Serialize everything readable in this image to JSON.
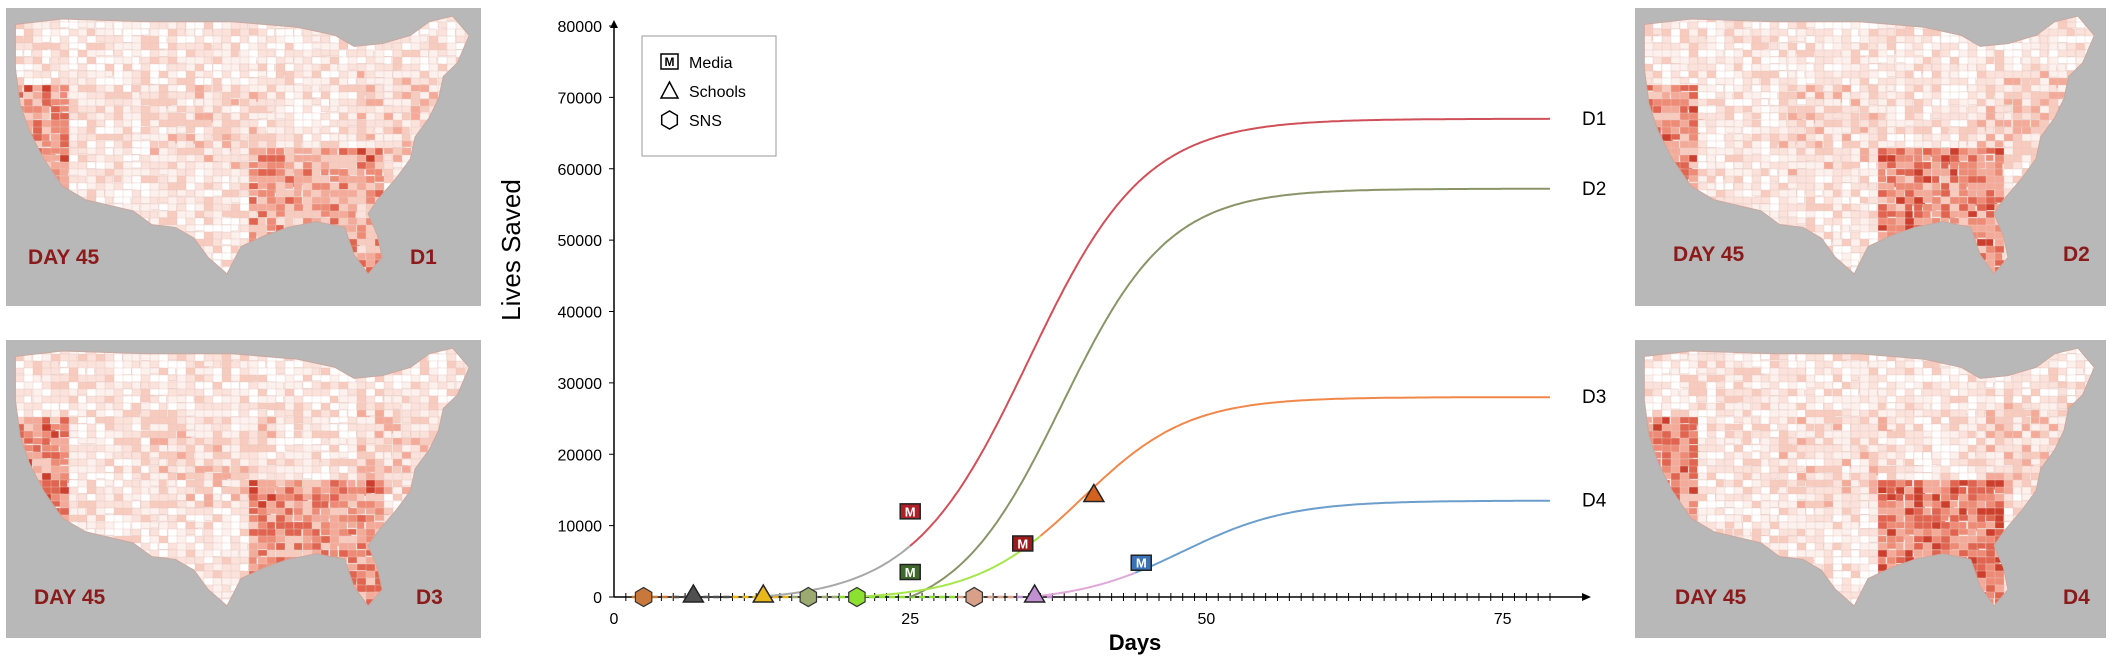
{
  "maps": [
    {
      "day_label": "DAY 45",
      "scenario": "D1"
    },
    {
      "day_label": "DAY 45",
      "scenario": "D3"
    },
    {
      "day_label": "DAY 45",
      "scenario": "D2"
    },
    {
      "day_label": "DAY 45",
      "scenario": "D4"
    }
  ],
  "map_colors": {
    "background": "#b8b8b8",
    "land": "#fbeae6",
    "land_dark": "#ef8a78",
    "label": "#8b1a1a"
  },
  "chart_data": {
    "type": "line",
    "xlabel": "Days",
    "ylabel": "Lives Saved",
    "xlim": [
      0,
      79
    ],
    "ylim": [
      0,
      80000
    ],
    "xticks": [
      0,
      25,
      50,
      75
    ],
    "yticks": [
      0,
      10000,
      20000,
      30000,
      40000,
      50000,
      60000,
      70000,
      80000
    ],
    "legend": {
      "placement": "top-left",
      "items": [
        {
          "marker": "square-M",
          "label": "Media"
        },
        {
          "marker": "triangle",
          "label": "Schools"
        },
        {
          "marker": "hexagon",
          "label": "SNS"
        }
      ]
    },
    "series": [
      {
        "name": "D1",
        "color": "#d0505a",
        "pre_color": "#a8a8a8",
        "x_start": 12,
        "x_color_change": 25,
        "plateau": 67000,
        "midpoint": 35,
        "scale": 4.9,
        "events": [
          {
            "type": "Media",
            "x": 25,
            "y": 12000,
            "fill": "#b02028"
          }
        ]
      },
      {
        "name": "D2",
        "color": "#8a9468",
        "pre_color": "#8a9468",
        "x_start": 25,
        "x_color_change": 25,
        "plateau": 57200,
        "midpoint": 37.8,
        "scale": 4.5,
        "events": [
          {
            "type": "Media",
            "x": 25,
            "y": 3500,
            "fill": "#3f6a2c"
          }
        ]
      },
      {
        "name": "D3",
        "color": "#f0884a",
        "pre_color": "#a6e64a",
        "x_start": 20,
        "x_color_change": 36,
        "plateau": 28000,
        "midpoint": 39.5,
        "scale": 4.5,
        "events": [
          {
            "type": "Media",
            "x": 34.5,
            "y": 7500,
            "fill": "#9a1c1c"
          },
          {
            "type": "Schools",
            "x": 40.5,
            "y": 14500,
            "fill": "#d4621c"
          }
        ]
      },
      {
        "name": "D4",
        "color": "#6b9ecb",
        "pre_color": "#e0a8d8",
        "x_start": 35,
        "x_color_change": 44,
        "plateau": 13500,
        "midpoint": 48,
        "scale": 4.5,
        "events": [
          {
            "type": "Media",
            "x": 44.5,
            "y": 4800,
            "fill": "#3a72b8"
          }
        ]
      }
    ],
    "baseline_events": [
      {
        "type": "SNS",
        "x": 2.5,
        "fill": "#c8783a"
      },
      {
        "type": "Schools",
        "x": 6.7,
        "fill": "#505050"
      },
      {
        "type": "Schools",
        "x": 12.6,
        "fill": "#e8b818"
      },
      {
        "type": "SNS",
        "x": 16.4,
        "fill": "#9aaa70"
      },
      {
        "type": "SNS",
        "x": 20.5,
        "fill": "#8ce030"
      },
      {
        "type": "SNS",
        "x": 30.4,
        "fill": "#d8a088"
      },
      {
        "type": "Schools",
        "x": 35.5,
        "fill": "#c090d0"
      }
    ]
  }
}
